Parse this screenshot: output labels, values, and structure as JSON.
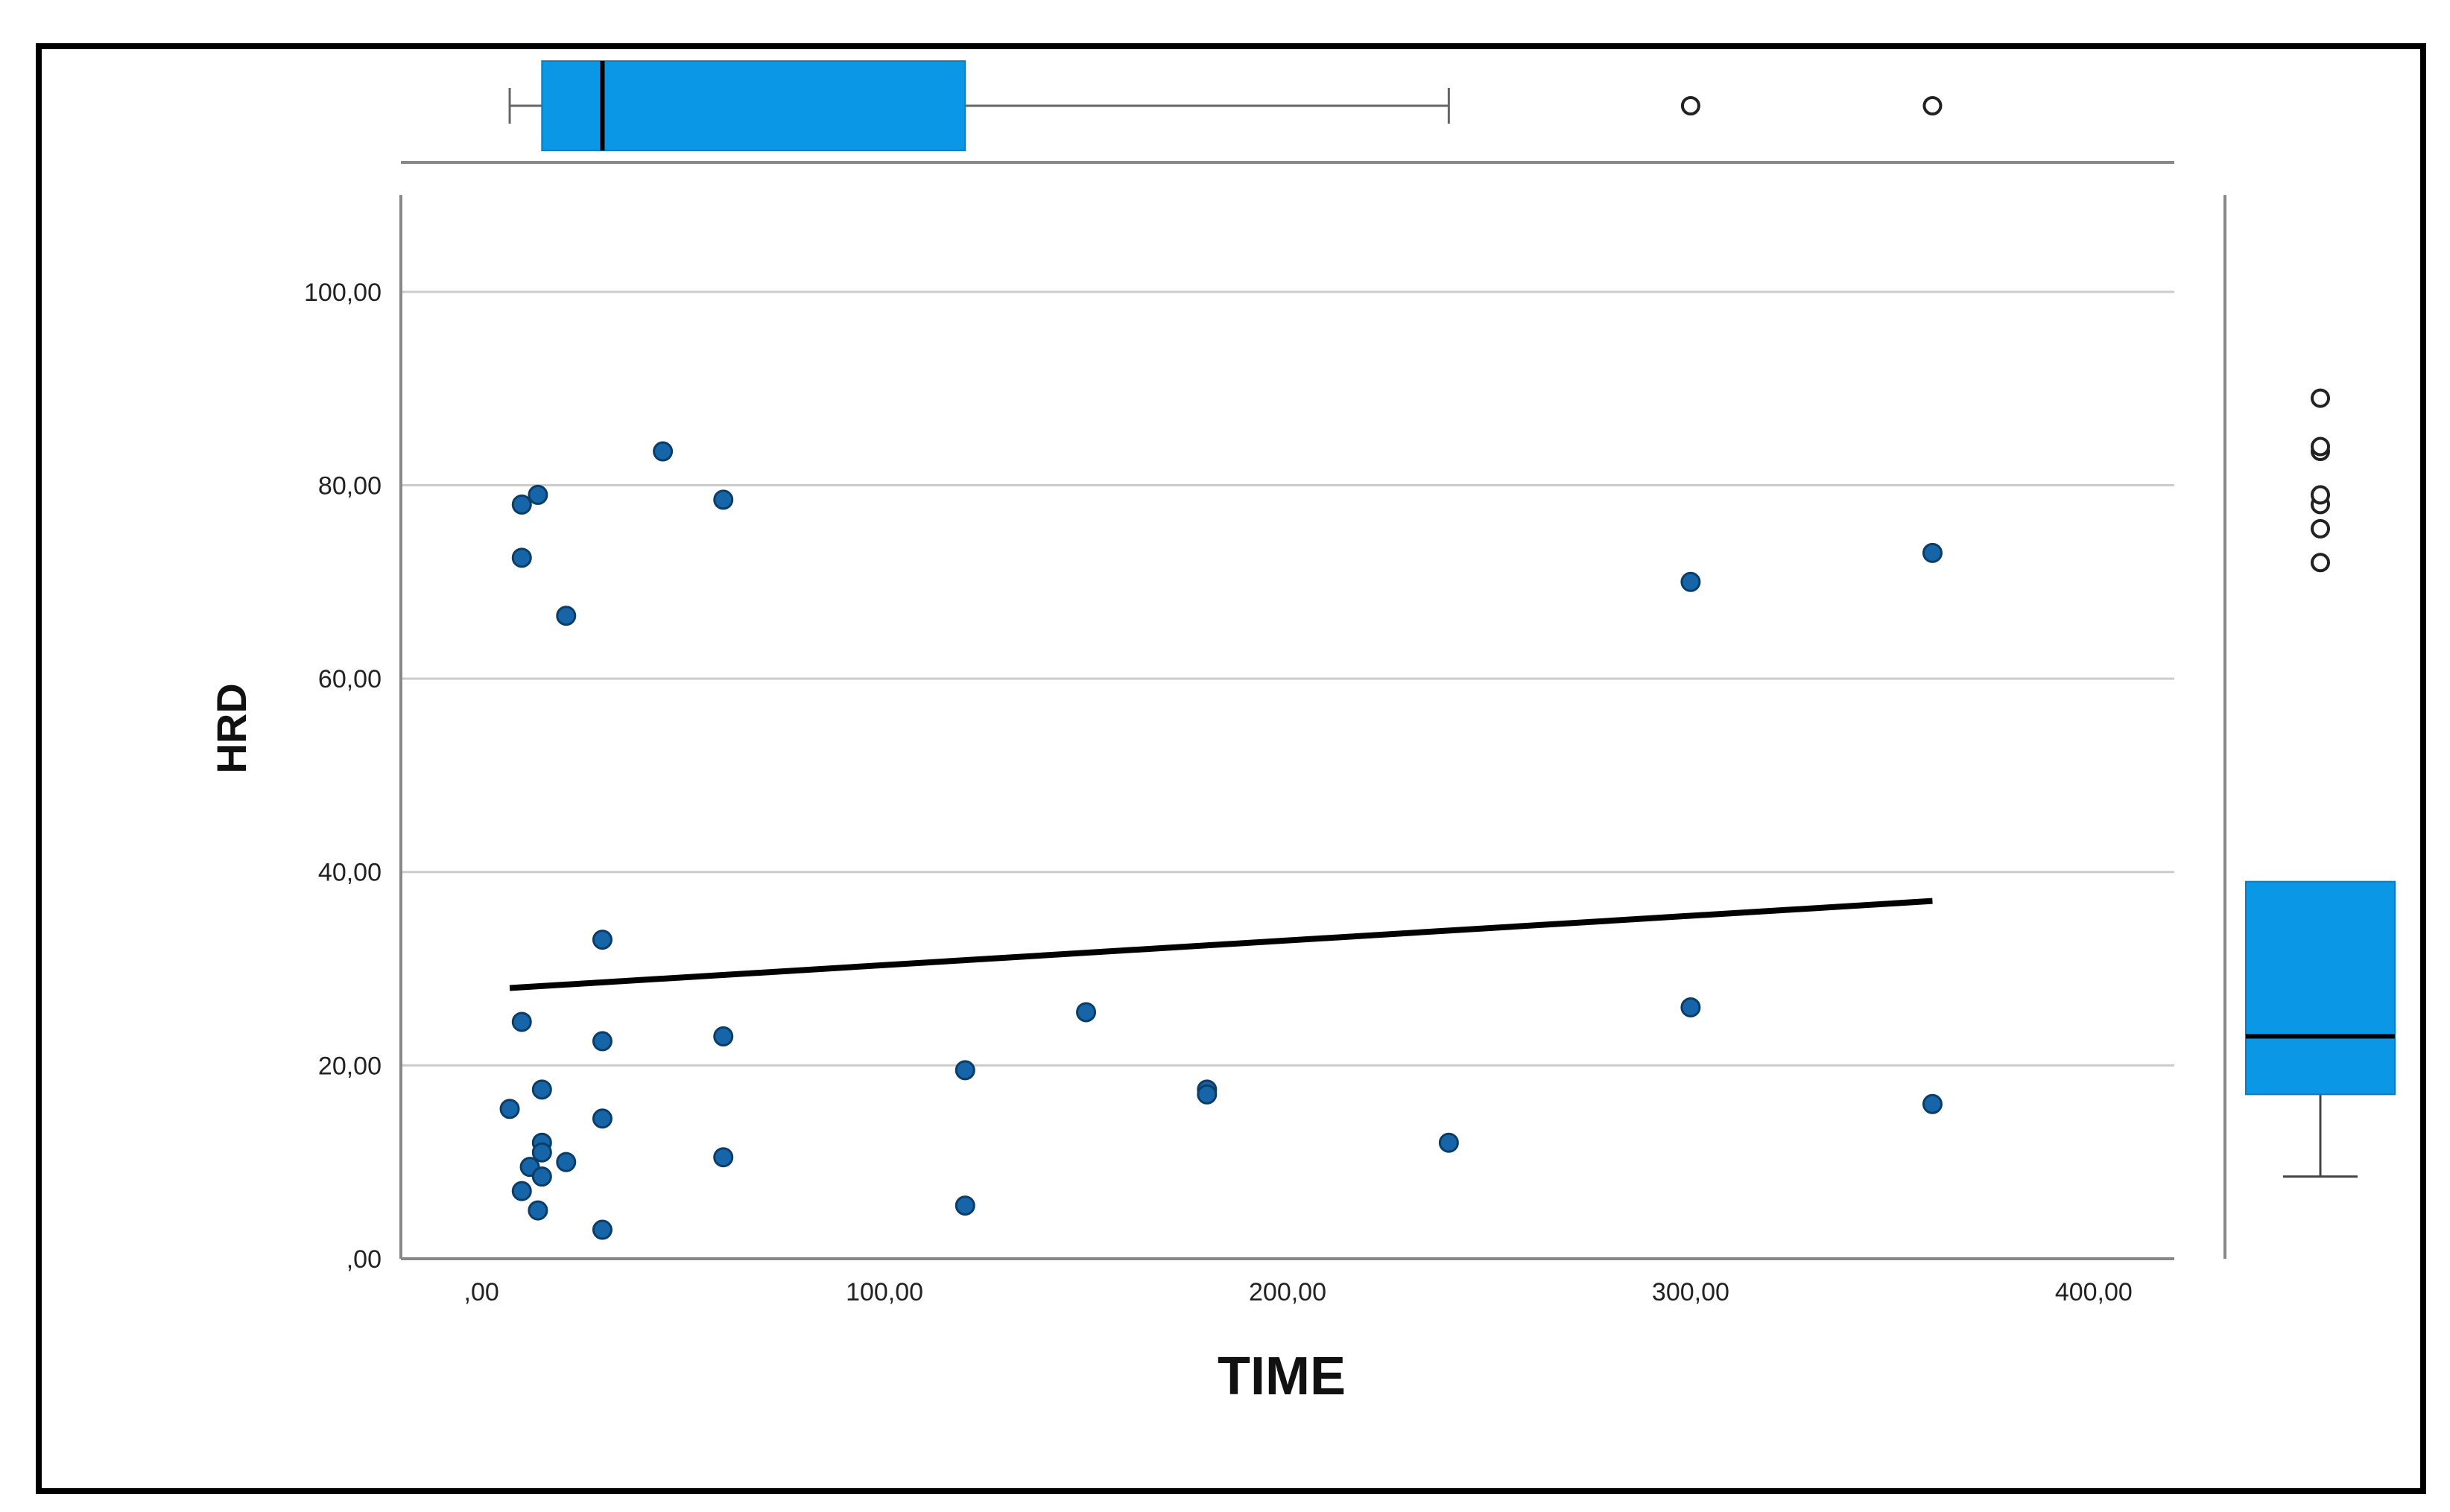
{
  "chart_data": {
    "type": "scatter",
    "title": "",
    "xlabel": "TIME",
    "ylabel": "HRD",
    "xlim": [
      -20,
      420
    ],
    "ylim": [
      0,
      110
    ],
    "x_ticks": [
      0,
      100,
      200,
      300,
      400
    ],
    "x_tick_labels": [
      ",00",
      "100,00",
      "200,00",
      "300,00",
      "400,00"
    ],
    "y_ticks": [
      0,
      20,
      40,
      60,
      80,
      100
    ],
    "y_tick_labels": [
      ",00",
      "20,00",
      "40,00",
      "60,00",
      "80,00",
      "100,00"
    ],
    "grid": "horizontal",
    "points": [
      {
        "x": 45,
        "y": 83.5
      },
      {
        "x": 14,
        "y": 79
      },
      {
        "x": 10,
        "y": 78
      },
      {
        "x": 60,
        "y": 78.5
      },
      {
        "x": 10,
        "y": 72.5
      },
      {
        "x": 21,
        "y": 66.5
      },
      {
        "x": 300,
        "y": 70
      },
      {
        "x": 360,
        "y": 73
      },
      {
        "x": 30,
        "y": 33
      },
      {
        "x": 10,
        "y": 24.5
      },
      {
        "x": 30,
        "y": 22.5
      },
      {
        "x": 60,
        "y": 23
      },
      {
        "x": 150,
        "y": 25.5
      },
      {
        "x": 300,
        "y": 26
      },
      {
        "x": 120,
        "y": 19.5
      },
      {
        "x": 15,
        "y": 17.5
      },
      {
        "x": 180,
        "y": 17.5
      },
      {
        "x": 180,
        "y": 17
      },
      {
        "x": 7,
        "y": 15.5
      },
      {
        "x": 30,
        "y": 14.5
      },
      {
        "x": 360,
        "y": 16
      },
      {
        "x": 15,
        "y": 12
      },
      {
        "x": 15,
        "y": 11
      },
      {
        "x": 240,
        "y": 12
      },
      {
        "x": 60,
        "y": 10.5
      },
      {
        "x": 21,
        "y": 10
      },
      {
        "x": 12,
        "y": 9.5
      },
      {
        "x": 15,
        "y": 8.5
      },
      {
        "x": 10,
        "y": 7
      },
      {
        "x": 14,
        "y": 5
      },
      {
        "x": 120,
        "y": 5.5
      },
      {
        "x": 30,
        "y": 3
      }
    ],
    "fit_line": {
      "x": [
        7,
        360
      ],
      "y": [
        28,
        37
      ]
    },
    "marginal_x_boxplot": {
      "min": 7,
      "q1": 15,
      "median": 30,
      "q3": 120,
      "max": 240,
      "outliers": [
        300,
        360
      ]
    },
    "marginal_y_boxplot": {
      "min": 8.5,
      "q1": 17,
      "median": 23,
      "q3": 38.5,
      "max": 39,
      "outliers": [
        72,
        75.5,
        78,
        79,
        83.5,
        84,
        89
      ]
    },
    "colors": {
      "point_fill": "#1565a8",
      "point_stroke": "#0b3d66",
      "box_fill": "#0a97e6",
      "line": "#000000",
      "grid": "#cccccc",
      "axis": "#888888"
    }
  }
}
